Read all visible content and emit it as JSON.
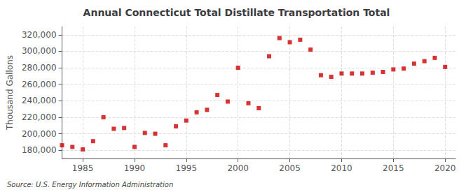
{
  "chart_data": {
    "type": "scatter",
    "title": "Annual Connecticut Total Distillate Transportation Total",
    "ylabel": "Thousand Gallons",
    "annotation": "Source: U.S. Energy Information Administration",
    "color": "#cc0000",
    "marker": "square",
    "grid": true,
    "xlim": [
      1983,
      2021
    ],
    "ylim": [
      170000,
      330000
    ],
    "xticks": [
      1985,
      1990,
      1995,
      2000,
      2005,
      2010,
      2015,
      2020
    ],
    "yticks": [
      {
        "value": 180000,
        "label": "180,000"
      },
      {
        "value": 200000,
        "label": "200,000"
      },
      {
        "value": 220000,
        "label": "220,000"
      },
      {
        "value": 240000,
        "label": "240,000"
      },
      {
        "value": 260000,
        "label": "260,000"
      },
      {
        "value": 280000,
        "label": "280,000"
      },
      {
        "value": 300000,
        "label": "300,000"
      },
      {
        "value": 320000,
        "label": "320,000"
      }
    ],
    "x": [
      1983,
      1984,
      1985,
      1986,
      1987,
      1988,
      1989,
      1990,
      1991,
      1992,
      1993,
      1994,
      1995,
      1996,
      1997,
      1998,
      1999,
      2000,
      2001,
      2002,
      2003,
      2004,
      2005,
      2006,
      2007,
      2008,
      2009,
      2010,
      2011,
      2012,
      2013,
      2014,
      2015,
      2016,
      2017,
      2018,
      2019,
      2020
    ],
    "values": [
      186000,
      184000,
      181000,
      191000,
      220000,
      206000,
      207000,
      184000,
      201000,
      200000,
      186000,
      209000,
      216000,
      226000,
      229000,
      247000,
      239000,
      280000,
      237000,
      231000,
      294000,
      316000,
      311000,
      314000,
      302000,
      271000,
      269000,
      273000,
      273000,
      273000,
      274000,
      275000,
      278000,
      279000,
      285000,
      288000,
      292000,
      281000
    ]
  }
}
